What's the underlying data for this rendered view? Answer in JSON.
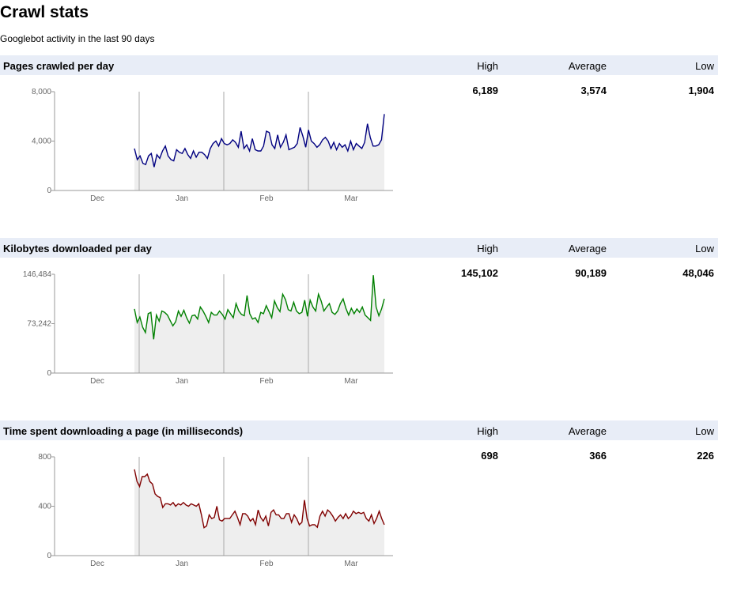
{
  "page": {
    "title": "Crawl stats",
    "subtitle": "Googlebot activity in the last 90 days"
  },
  "stat_headers": {
    "high": "High",
    "average": "Average",
    "low": "Low"
  },
  "sections": [
    {
      "title": "Pages crawled per day",
      "high": "6,189",
      "average": "3,574",
      "low": "1,904"
    },
    {
      "title": "Kilobytes downloaded per day",
      "high": "145,102",
      "average": "90,189",
      "low": "48,046"
    },
    {
      "title": "Time spent downloading a page (in milliseconds)",
      "high": "698",
      "average": "366",
      "low": "226"
    }
  ],
  "chart_data": [
    {
      "type": "area",
      "title": "Pages crawled per day",
      "color": "#000080",
      "fill": "#eeeeee",
      "x_labels": [
        "Dec",
        "Jan",
        "Feb",
        "Mar"
      ],
      "y_ticks": [
        "0",
        "4,000",
        "8,000"
      ],
      "ylim": [
        0,
        8000
      ],
      "values": [
        3400,
        2500,
        2800,
        2200,
        2100,
        2800,
        3000,
        1900,
        2900,
        2600,
        3200,
        3600,
        2800,
        2500,
        2400,
        3300,
        3100,
        3000,
        3400,
        2900,
        2600,
        3200,
        2700,
        3100,
        3100,
        2900,
        2600,
        3400,
        3800,
        4000,
        3600,
        4200,
        3800,
        3700,
        3800,
        4100,
        3900,
        3500,
        4800,
        3400,
        3700,
        3200,
        4200,
        3300,
        3200,
        3200,
        3600,
        4800,
        4700,
        3700,
        3400,
        4500,
        3500,
        3900,
        4500,
        3300,
        3400,
        3500,
        3800,
        5100,
        4400,
        3500,
        4900,
        4000,
        3800,
        3500,
        3700,
        4100,
        4300,
        4000,
        3400,
        3900,
        3300,
        3800,
        3500,
        3700,
        3200,
        4000,
        3300,
        3800,
        3600,
        3400,
        3900,
        5400,
        4300,
        3600,
        3600,
        3700,
        4100,
        6189
      ]
    },
    {
      "type": "area",
      "title": "Kilobytes downloaded per day",
      "color": "#008000",
      "fill": "#eeeeee",
      "x_labels": [
        "Dec",
        "Jan",
        "Feb",
        "Mar"
      ],
      "y_ticks": [
        "0",
        "73,242",
        "146,484"
      ],
      "ylim": [
        0,
        146484
      ],
      "values": [
        95000,
        75000,
        83000,
        68000,
        60000,
        88000,
        90000,
        50000,
        86000,
        77000,
        92000,
        90000,
        86000,
        78000,
        70000,
        76000,
        92000,
        84000,
        93000,
        82000,
        74000,
        85000,
        86000,
        80000,
        98000,
        92000,
        84000,
        75000,
        90000,
        86000,
        86000,
        92000,
        87000,
        80000,
        94000,
        88000,
        82000,
        103000,
        92000,
        87000,
        85000,
        115000,
        88000,
        80000,
        82000,
        75000,
        90000,
        88000,
        100000,
        91000,
        82000,
        107000,
        97000,
        91000,
        117000,
        109000,
        94000,
        92000,
        105000,
        92000,
        88000,
        90000,
        108000,
        84000,
        108000,
        98000,
        92000,
        117000,
        107000,
        92000,
        98000,
        103000,
        90000,
        87000,
        92000,
        103000,
        110000,
        96000,
        86000,
        96000,
        88000,
        95000,
        90000,
        98000,
        86000,
        82000,
        78000,
        145102,
        98000,
        85000,
        95000,
        110000
      ]
    },
    {
      "type": "area",
      "title": "Time spent downloading a page (in milliseconds)",
      "color": "#800000",
      "fill": "#eeeeee",
      "x_labels": [
        "Dec",
        "Jan",
        "Feb",
        "Mar"
      ],
      "y_ticks": [
        "0",
        "400",
        "800"
      ],
      "ylim": [
        0,
        800
      ],
      "values": [
        698,
        600,
        560,
        640,
        640,
        660,
        600,
        580,
        500,
        480,
        470,
        390,
        420,
        420,
        410,
        430,
        400,
        420,
        410,
        430,
        410,
        400,
        420,
        410,
        400,
        420,
        330,
        226,
        240,
        330,
        300,
        310,
        400,
        290,
        280,
        300,
        300,
        300,
        330,
        360,
        310,
        250,
        340,
        340,
        320,
        280,
        300,
        250,
        370,
        310,
        280,
        320,
        240,
        350,
        370,
        330,
        330,
        300,
        300,
        340,
        340,
        270,
        330,
        300,
        250,
        270,
        450,
        300,
        240,
        250,
        250,
        230,
        320,
        360,
        320,
        370,
        350,
        320,
        280,
        310,
        330,
        300,
        340,
        300,
        320,
        360,
        340,
        350,
        340,
        350,
        300,
        280,
        330,
        260,
        300,
        360,
        300,
        250
      ]
    }
  ]
}
